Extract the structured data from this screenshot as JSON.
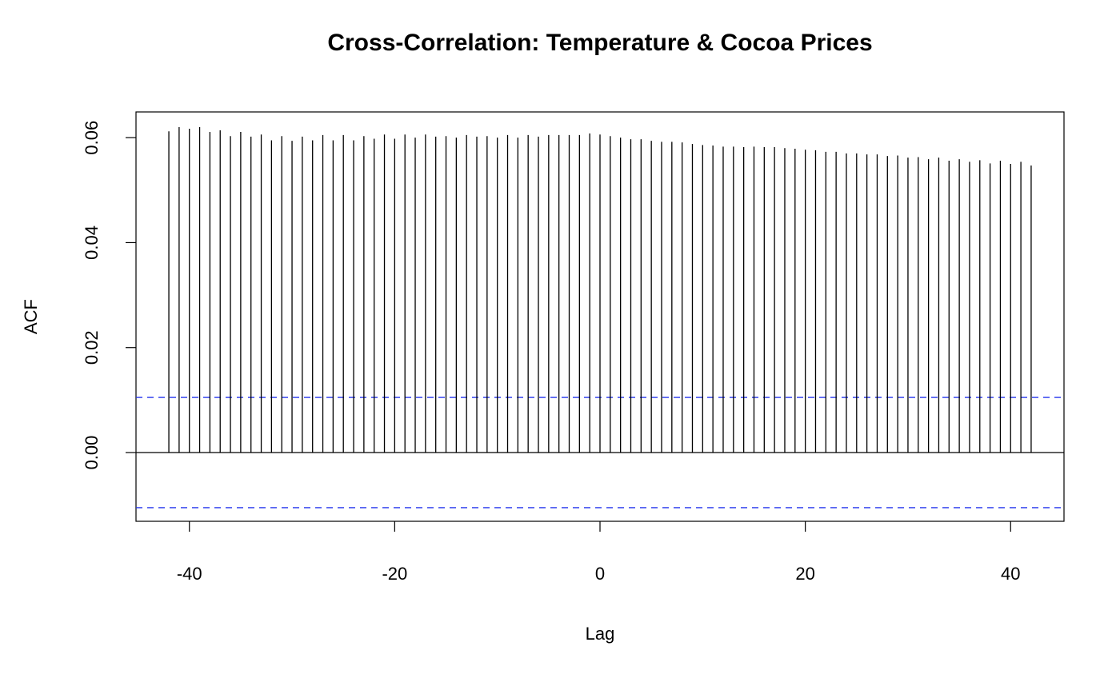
{
  "chart_data": {
    "type": "stem",
    "title": "Cross-Correlation: Temperature & Cocoa Prices",
    "x_label": "Lag",
    "y_label": "ACF",
    "x": [
      -42,
      -41,
      -40,
      -39,
      -38,
      -37,
      -36,
      -35,
      -34,
      -33,
      -32,
      -31,
      -30,
      -29,
      -28,
      -27,
      -26,
      -25,
      -24,
      -23,
      -22,
      -21,
      -20,
      -19,
      -18,
      -17,
      -16,
      -15,
      -14,
      -13,
      -12,
      -11,
      -10,
      -9,
      -8,
      -7,
      -6,
      -5,
      -4,
      -3,
      -2,
      -1,
      0,
      1,
      2,
      3,
      4,
      5,
      6,
      7,
      8,
      9,
      10,
      11,
      12,
      13,
      14,
      15,
      16,
      17,
      18,
      19,
      20,
      21,
      22,
      23,
      24,
      25,
      26,
      27,
      28,
      29,
      30,
      31,
      32,
      33,
      34,
      35,
      36,
      37,
      38,
      39,
      40,
      41,
      42
    ],
    "values": [
      0.0612,
      0.062,
      0.0617,
      0.062,
      0.0611,
      0.0614,
      0.0603,
      0.0611,
      0.0602,
      0.0606,
      0.0595,
      0.0603,
      0.0594,
      0.0602,
      0.0595,
      0.0605,
      0.0595,
      0.0605,
      0.0595,
      0.0603,
      0.0598,
      0.0606,
      0.0598,
      0.0606,
      0.06,
      0.0606,
      0.0602,
      0.0603,
      0.06,
      0.0605,
      0.0602,
      0.0603,
      0.06,
      0.0605,
      0.06,
      0.0605,
      0.0602,
      0.0605,
      0.0605,
      0.0605,
      0.0605,
      0.0608,
      0.0606,
      0.0603,
      0.06,
      0.0597,
      0.0597,
      0.0594,
      0.0592,
      0.0592,
      0.0591,
      0.0588,
      0.0586,
      0.0585,
      0.0583,
      0.0583,
      0.0582,
      0.0583,
      0.0582,
      0.0582,
      0.058,
      0.0579,
      0.0577,
      0.0576,
      0.0573,
      0.0573,
      0.057,
      0.057,
      0.0568,
      0.0568,
      0.0565,
      0.0566,
      0.0562,
      0.0563,
      0.0559,
      0.0562,
      0.0556,
      0.0559,
      0.0554,
      0.0557,
      0.0551,
      0.0556,
      0.055,
      0.0554,
      0.0547
    ],
    "color": "#000000",
    "ci_lines": [
      0.0105,
      -0.0105
    ],
    "ci_color": "#2233ee",
    "xlim": [
      -45.2,
      45.2
    ],
    "ylim": [
      -0.0131,
      0.0649
    ],
    "xticks": [
      -40,
      -20,
      0,
      20,
      40
    ],
    "yticks": [
      {
        "value": 0,
        "label": "0.00"
      },
      0.02,
      0.04,
      0.06
    ]
  }
}
